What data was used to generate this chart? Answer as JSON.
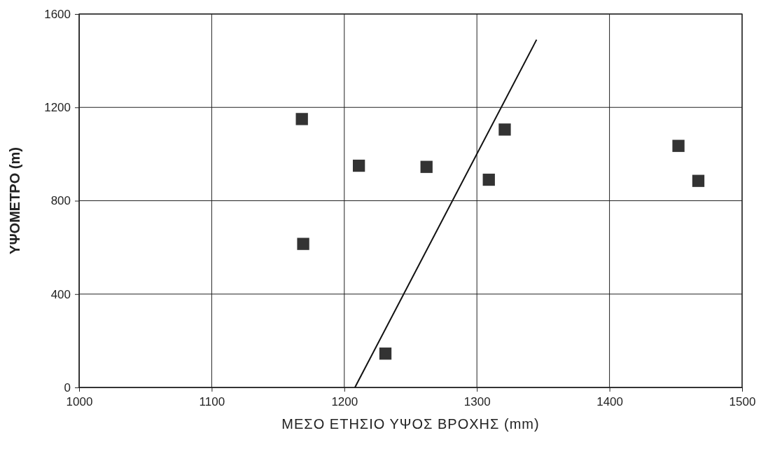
{
  "chart_data": {
    "type": "scatter",
    "xlabel": "ΜΕΣΟ ΕΤΗΣΙΟ ΥΨΟΣ ΒΡΟΧΗΣ (mm)",
    "ylabel": "ΥΨΟΜΕΤΡΟ (m)",
    "xlim": [
      1000,
      1500
    ],
    "xticks": [
      1000,
      1100,
      1200,
      1300,
      1400,
      1500
    ],
    "ylim": [
      0,
      1600
    ],
    "yticks": [
      0,
      400,
      800,
      1200,
      1600
    ],
    "grid": true,
    "marker": "square",
    "series": [
      {
        "color": "#333333",
        "x": [
          1168,
          1169,
          1211,
          1231,
          1262,
          1309,
          1321,
          1452,
          1467
        ],
        "values": [
          1150,
          615,
          950,
          145,
          945,
          890,
          1105,
          1035,
          885
        ]
      },
      {
        "type": "line",
        "color": "#111111",
        "x": [
          1208,
          1345
        ],
        "values": [
          0,
          1490
        ],
        "marker": "none",
        "line_style": "solid"
      }
    ]
  }
}
